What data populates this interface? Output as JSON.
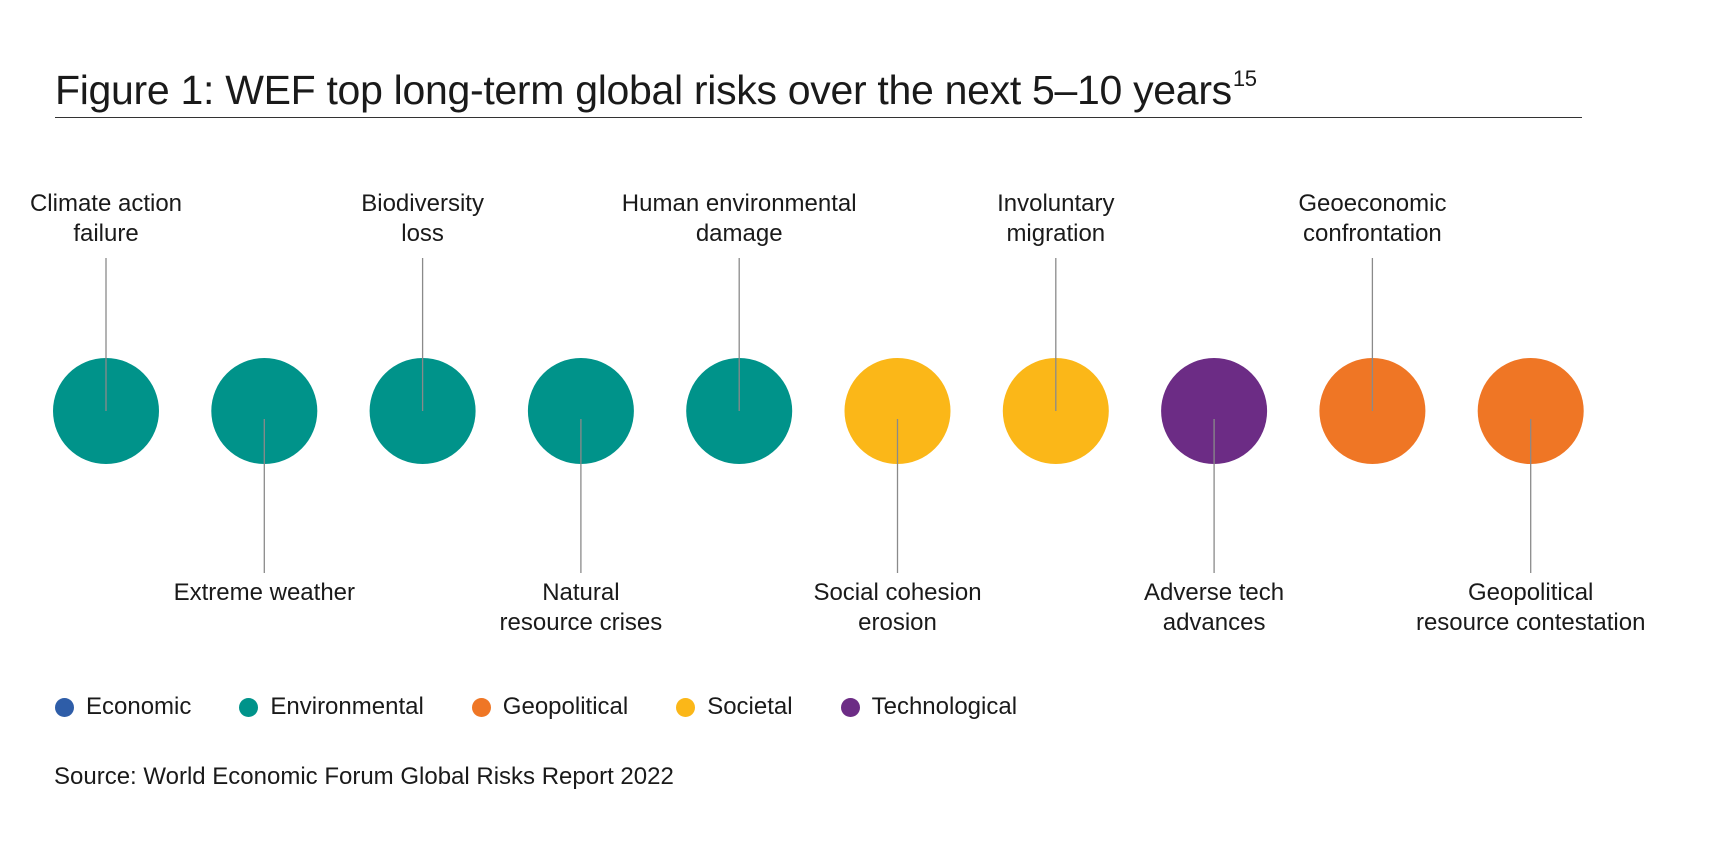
{
  "title": {
    "text": "Figure 1: WEF top long-term global risks over the next 5–10 years",
    "footnote": "15"
  },
  "risks": [
    {
      "lines": [
        "Climate action",
        "failure"
      ],
      "category": "Environmental",
      "label_position": "above"
    },
    {
      "lines": [
        "Extreme weather"
      ],
      "category": "Environmental",
      "label_position": "below"
    },
    {
      "lines": [
        "Biodiversity",
        "loss"
      ],
      "category": "Environmental",
      "label_position": "above"
    },
    {
      "lines": [
        "Natural",
        "resource crises"
      ],
      "category": "Environmental",
      "label_position": "below"
    },
    {
      "lines": [
        "Human environmental",
        "damage"
      ],
      "category": "Environmental",
      "label_position": "above"
    },
    {
      "lines": [
        "Social cohesion",
        "erosion"
      ],
      "category": "Societal",
      "label_position": "below"
    },
    {
      "lines": [
        "Involuntary",
        "migration"
      ],
      "category": "Societal",
      "label_position": "above"
    },
    {
      "lines": [
        "Adverse tech",
        "advances"
      ],
      "category": "Technological",
      "label_position": "below"
    },
    {
      "lines": [
        "Geoeconomic",
        "confrontation"
      ],
      "category": "Geopolitical",
      "label_position": "above"
    },
    {
      "lines": [
        "Geopolitical",
        "resource contestation"
      ],
      "category": "Geopolitical",
      "label_position": "below"
    }
  ],
  "legend": [
    {
      "label": "Economic",
      "color": "#2e5da8"
    },
    {
      "label": "Environmental",
      "color": "#00938a"
    },
    {
      "label": "Geopolitical",
      "color": "#ef7625"
    },
    {
      "label": "Societal",
      "color": "#fbb718"
    },
    {
      "label": "Technological",
      "color": "#6c2c85"
    }
  ],
  "colors": {
    "Economic": "#2e5da8",
    "Environmental": "#00938a",
    "Geopolitical": "#ef7625",
    "Societal": "#fbb718",
    "Technological": "#6c2c85",
    "connector": "#8a8a8a"
  },
  "source": {
    "label": "Source:",
    "text": " World Economic Forum Global Risks Report 2022"
  }
}
